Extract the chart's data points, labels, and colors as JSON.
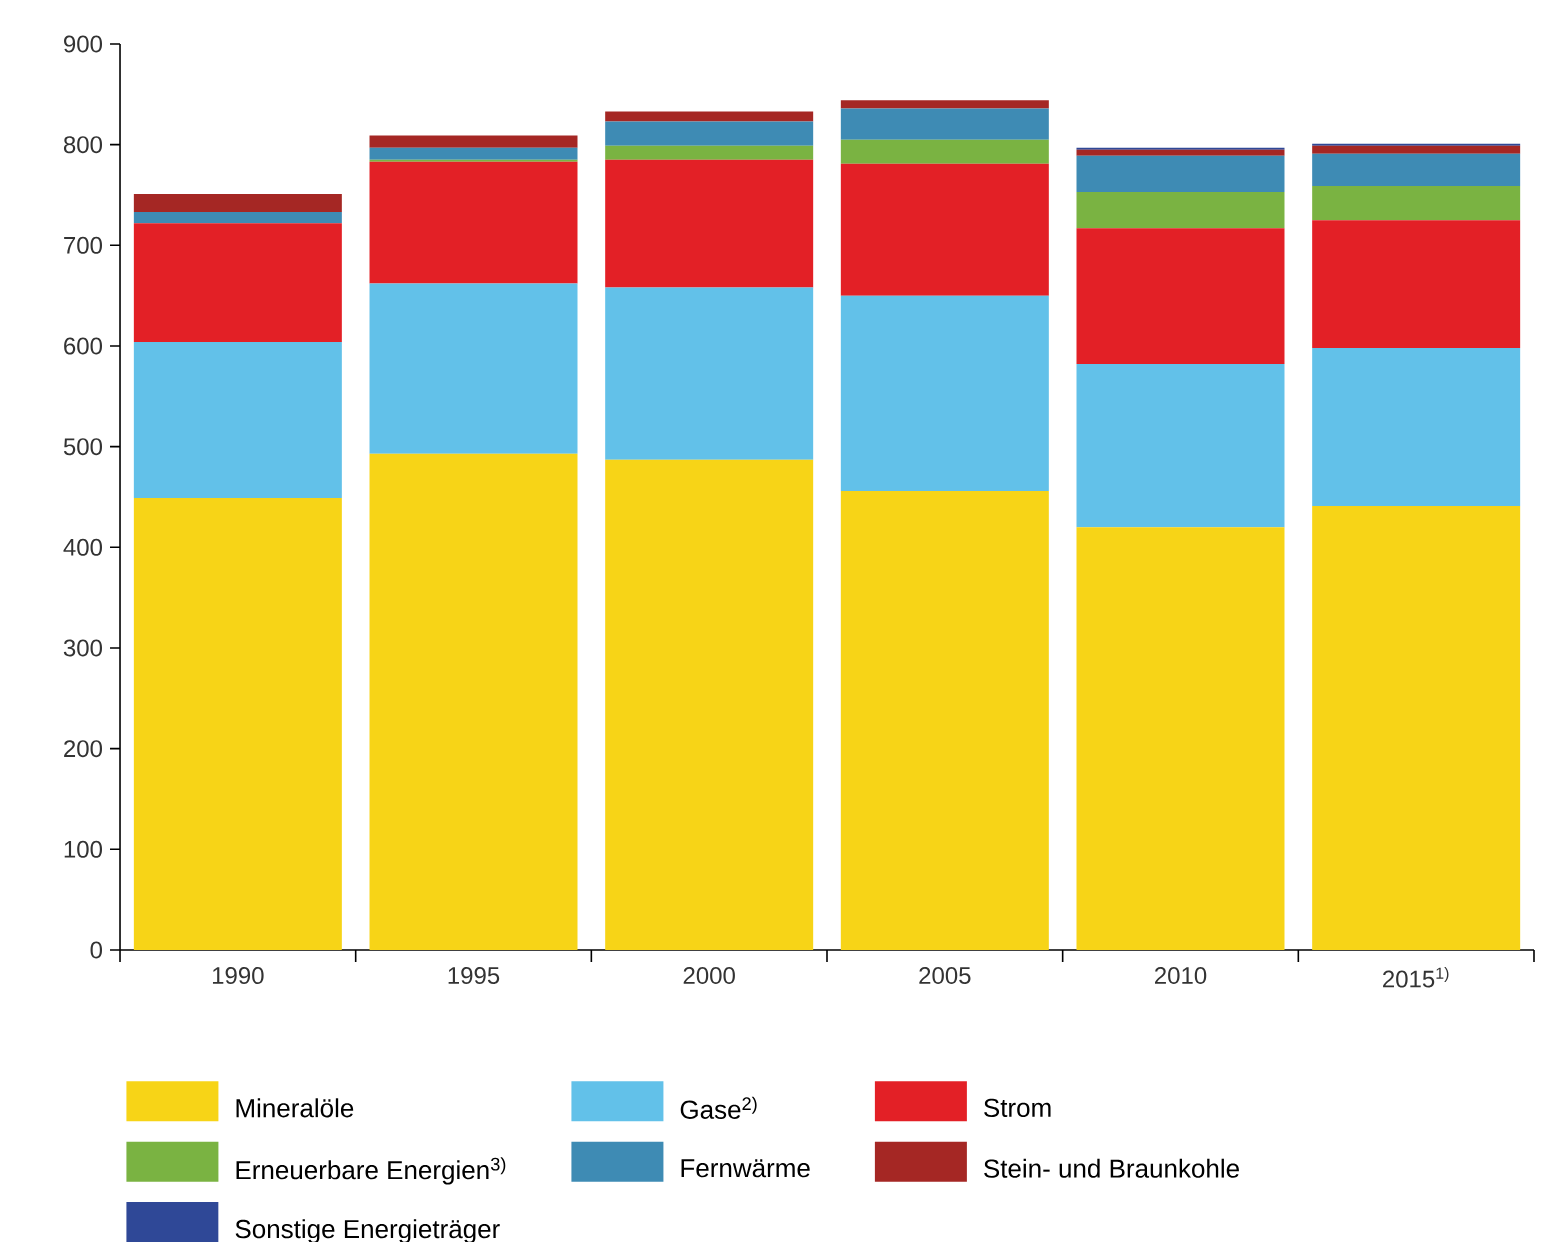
{
  "chart_data": {
    "type": "bar",
    "stacked": true,
    "categories": [
      "1990",
      "1995",
      "2000",
      "2005",
      "2010",
      "2015$^{1)}$"
    ],
    "series": [
      {
        "name": "Mineralöle",
        "color": "#f7d417",
        "values": [
          449,
          493,
          487,
          456,
          420,
          441
        ]
      },
      {
        "name": "Gase$^{2)}$",
        "color": "#62c1e9",
        "values": [
          155,
          169,
          171,
          194,
          162,
          157
        ]
      },
      {
        "name": "Strom",
        "color": "#e32026",
        "values": [
          118,
          121,
          127,
          131,
          135,
          127
        ]
      },
      {
        "name": "Erneuerbare Energien$^{3)}$",
        "color": "#7ab342",
        "values": [
          0,
          2,
          14,
          24,
          36,
          34
        ]
      },
      {
        "name": "Fernwärme",
        "color": "#3e8bb4",
        "values": [
          11,
          12,
          24,
          31,
          36,
          32
        ]
      },
      {
        "name": "Stein- und Braunkohle",
        "color": "#a52724",
        "values": [
          18,
          12,
          10,
          8,
          6,
          8
        ]
      },
      {
        "name": "Sonstige Energieträger",
        "color": "#2f4897",
        "values": [
          0,
          0,
          0,
          0,
          2,
          2
        ]
      }
    ],
    "ylim": [
      0,
      900
    ],
    "yticks": [
      0,
      100,
      200,
      300,
      400,
      500,
      600,
      700,
      800,
      900
    ],
    "legend": "bottom",
    "grid": false
  }
}
